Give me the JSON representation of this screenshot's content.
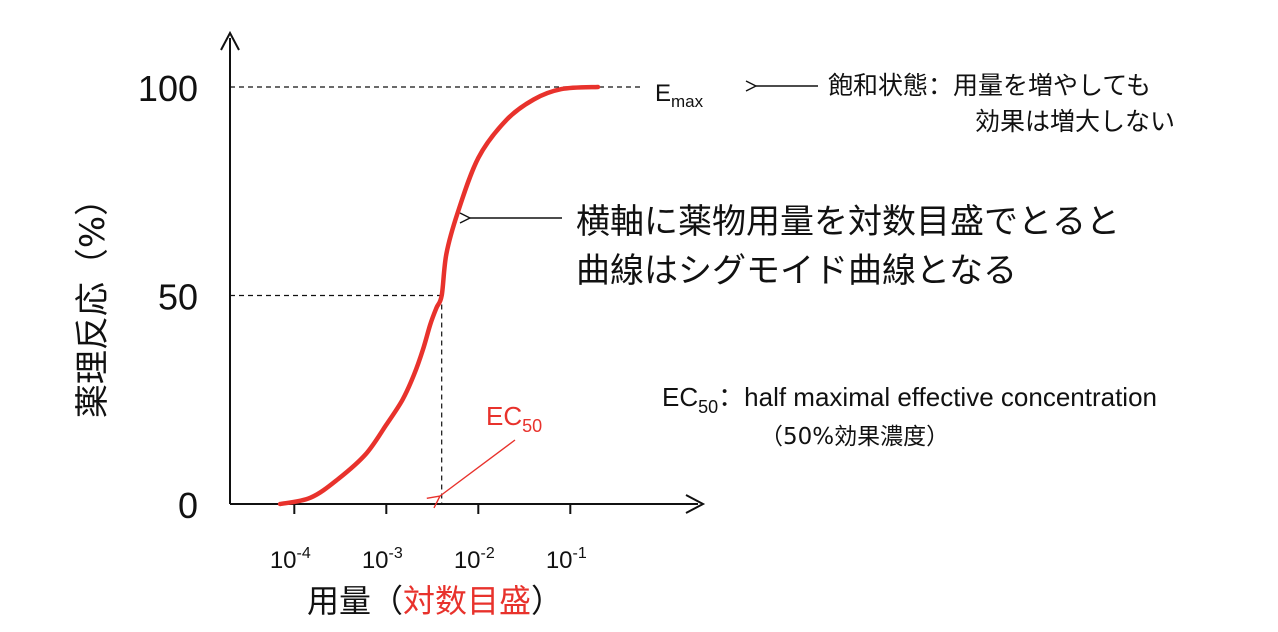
{
  "colors": {
    "curve": "#e8322c",
    "axis": "#111111",
    "text": "#111111"
  },
  "chart_data": {
    "type": "line",
    "x_scale": "log",
    "y_label": "薬理反応（%）",
    "x_label_prefix": "用量（",
    "x_label_emph": "対数目盛",
    "x_label_suffix": "）",
    "y_ticks": [
      "0",
      "50",
      "100"
    ],
    "y_tick_values": [
      0,
      50,
      100
    ],
    "x_ticks": [
      {
        "value": 0.0001,
        "base": "10",
        "exp": "-4"
      },
      {
        "value": 0.001,
        "base": "10",
        "exp": "-3"
      },
      {
        "value": 0.01,
        "base": "10",
        "exp": "-2"
      },
      {
        "value": 0.1,
        "base": "10",
        "exp": "-1"
      }
    ],
    "ylim": [
      0,
      100
    ],
    "xlim": [
      2e-05,
      2.0
    ],
    "series": [
      {
        "x": [
          7e-05,
          0.00015,
          0.0003,
          0.0006,
          0.001,
          0.0015,
          0.002,
          0.0025,
          0.003,
          0.0035,
          0.004,
          0.0045,
          0.006,
          0.01,
          0.02,
          0.04,
          0.08,
          0.2
        ],
        "y": [
          0,
          1.5,
          6,
          12,
          19,
          25,
          31,
          37,
          43,
          47,
          50,
          60,
          70,
          83,
          92,
          97,
          99.5,
          100
        ]
      }
    ],
    "ec50_x": 0.004,
    "annotations": {
      "emax_base": "E",
      "emax_sub": "max",
      "saturation_line1": "飽和状態：用量を増やしても",
      "saturation_line2": "効果は増大しない",
      "sigmoid_line1": "横軸に薬物用量を対数目盛でとると",
      "sigmoid_line2": "曲線はシグモイド曲線となる",
      "ec50_label_base": "EC",
      "ec50_label_sub": "50",
      "definition_base": "EC",
      "definition_sub": "50",
      "definition_text": "：half maximal effective concentration",
      "definition_note": "（50%効果濃度）"
    }
  }
}
